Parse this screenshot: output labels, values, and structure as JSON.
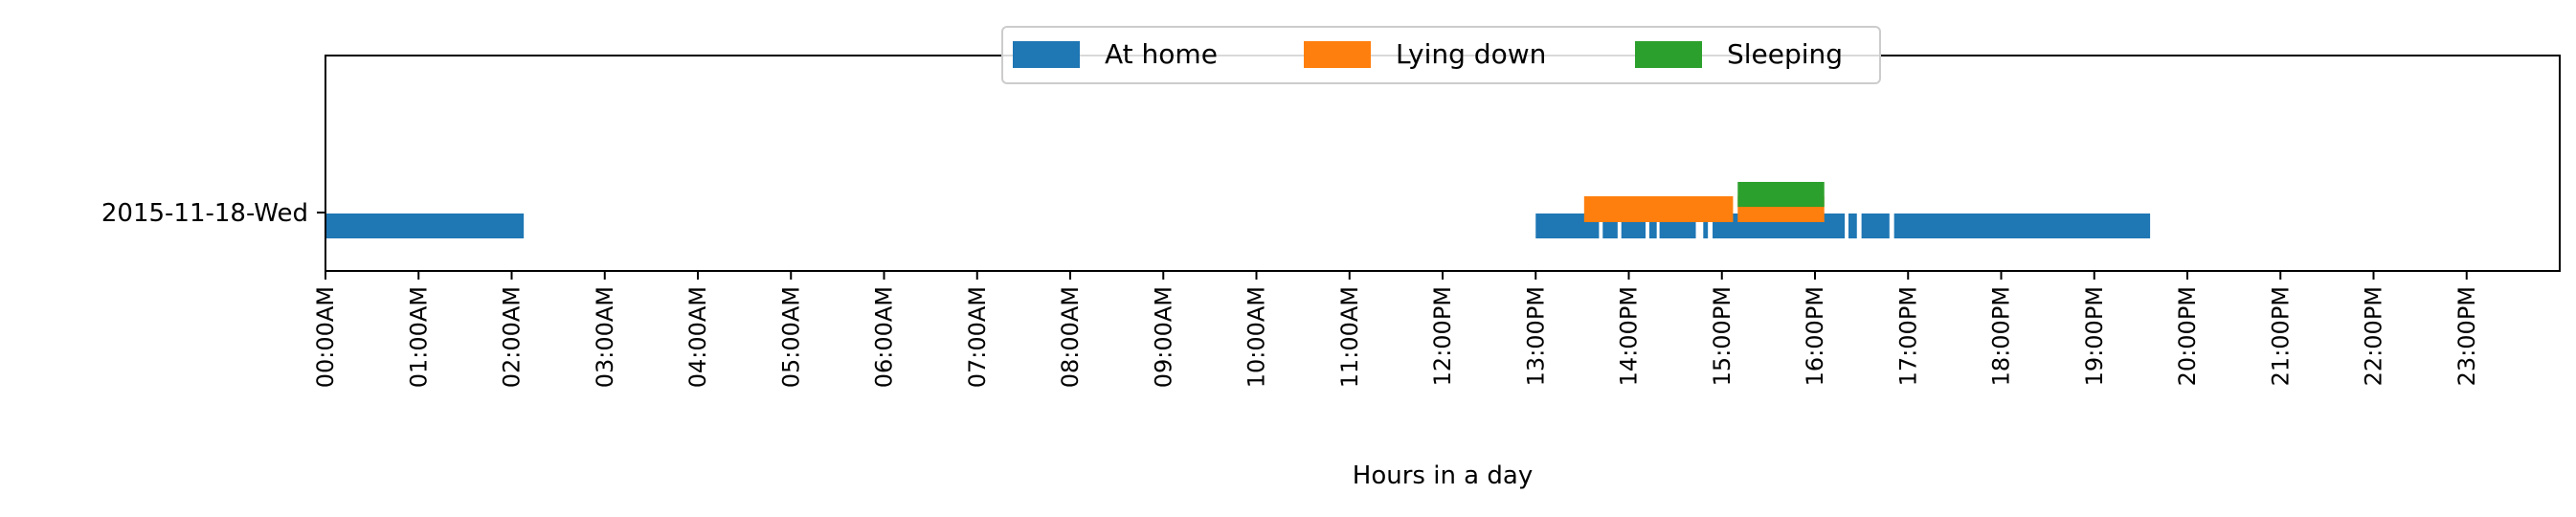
{
  "chart_data": {
    "type": "timeline",
    "title": "",
    "xlabel": "Hours in a day",
    "ylabel": "",
    "xlim": [
      0,
      24
    ],
    "xticks": [
      "00:00AM",
      "01:00AM",
      "02:00AM",
      "03:00AM",
      "04:00AM",
      "05:00AM",
      "06:00AM",
      "07:00AM",
      "08:00AM",
      "09:00AM",
      "10:00AM",
      "11:00AM",
      "12:00PM",
      "13:00PM",
      "14:00PM",
      "15:00PM",
      "16:00PM",
      "17:00PM",
      "18:00PM",
      "19:00PM",
      "20:00PM",
      "21:00PM",
      "22:00PM",
      "23:00PM"
    ],
    "categories": [
      "2015-11-18-Wed"
    ],
    "legend": {
      "position": "top-center",
      "columns": 3
    },
    "grid": false,
    "series": [
      {
        "name": "At home",
        "color": "#1f77b4",
        "intervals": [
          [
            0.0,
            2.13
          ],
          [
            13.0,
            13.68
          ],
          [
            13.72,
            13.88
          ],
          [
            13.92,
            14.18
          ],
          [
            14.22,
            14.3
          ],
          [
            14.33,
            14.72
          ],
          [
            14.8,
            14.85
          ],
          [
            14.9,
            16.32
          ],
          [
            16.36,
            16.45
          ],
          [
            16.5,
            16.8
          ],
          [
            16.85,
            19.6
          ]
        ]
      },
      {
        "name": "Lying down",
        "color": "#ff7f0e",
        "intervals": [
          [
            13.52,
            15.12
          ],
          [
            15.17,
            16.1
          ]
        ]
      },
      {
        "name": "Sleeping",
        "color": "#2ca02c",
        "intervals": [
          [
            15.17,
            16.1
          ]
        ]
      }
    ]
  }
}
